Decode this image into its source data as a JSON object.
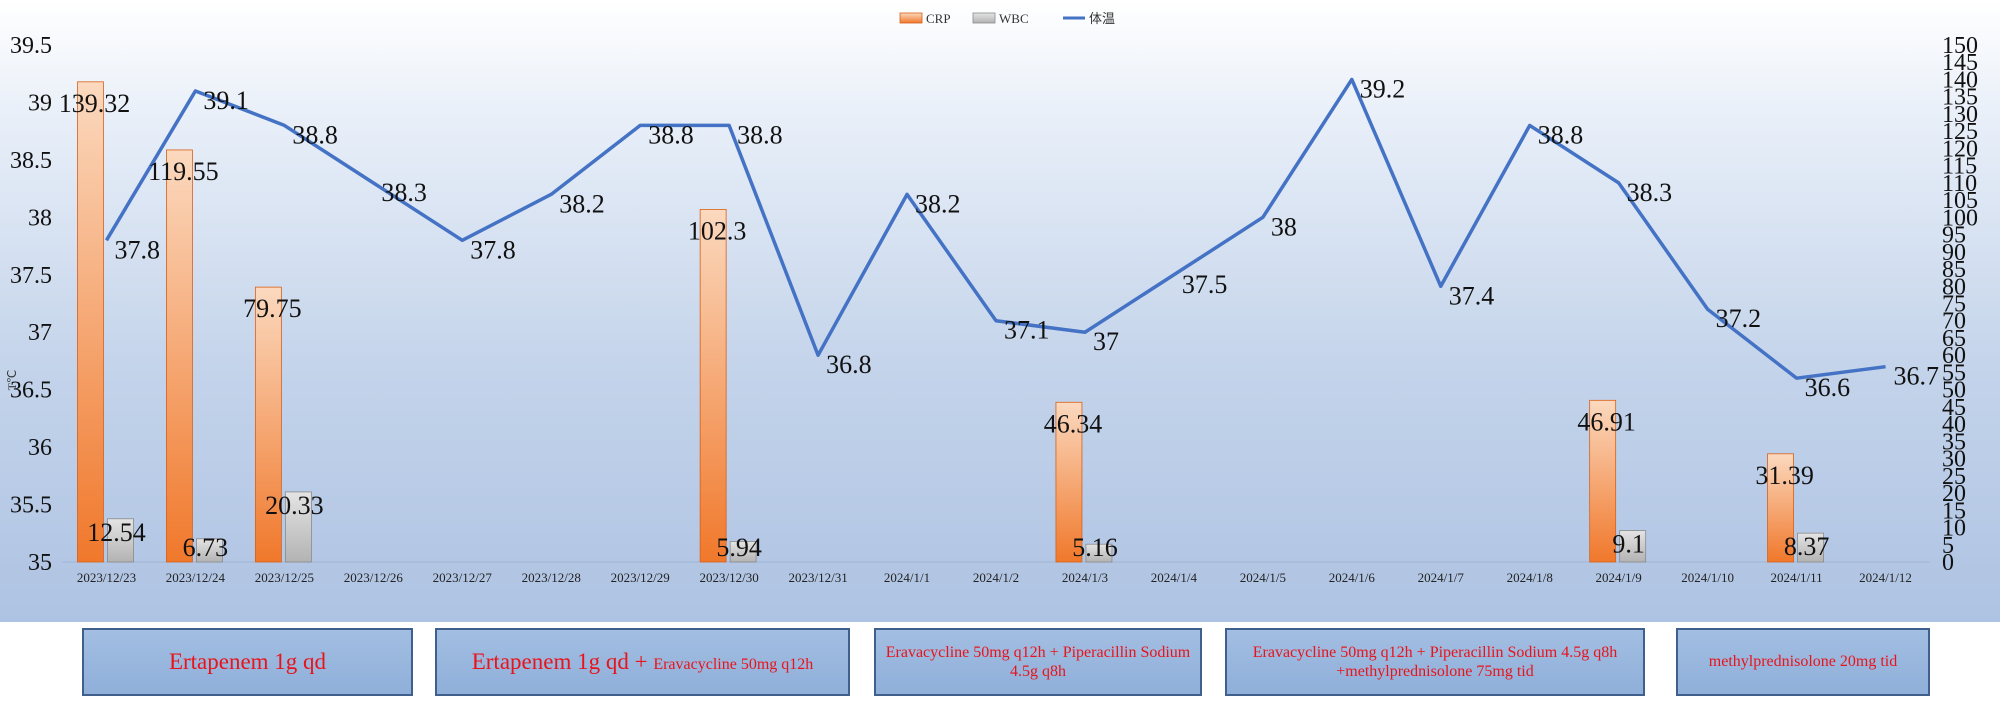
{
  "chart_data": {
    "type": "bar+line",
    "title": "",
    "ylabel": "T℃",
    "y_left": {
      "min": 35,
      "max": 39.5,
      "ticks": [
        "35",
        "35.5",
        "36",
        "36.5",
        "37",
        "37.5",
        "38",
        "38.5",
        "39",
        "39.5"
      ]
    },
    "y_right": {
      "min": 0,
      "max": 150,
      "ticks": [
        "0",
        "5",
        "10",
        "15",
        "20",
        "25",
        "30",
        "35",
        "40",
        "45",
        "50",
        "55",
        "60",
        "65",
        "70",
        "75",
        "80",
        "85",
        "90",
        "95",
        "100",
        "105",
        "110",
        "115",
        "120",
        "125",
        "130",
        "135",
        "140",
        "145",
        "150"
      ]
    },
    "categories": [
      "2023/12/23",
      "2023/12/24",
      "2023/12/25",
      "2023/12/26",
      "2023/12/27",
      "2023/12/28",
      "2023/12/29",
      "2023/12/30",
      "2023/12/31",
      "2024/1/1",
      "2024/1/2",
      "2024/1/3",
      "2024/1/4",
      "2024/1/5",
      "2024/1/6",
      "2024/1/7",
      "2024/1/8",
      "2024/1/9",
      "2024/1/10",
      "2024/1/11",
      "2024/1/12"
    ],
    "legend": [
      "CRP",
      "WBC",
      "体温"
    ],
    "legend_position": "top-center",
    "grid": false,
    "series": [
      {
        "name": "CRP",
        "kind": "bar",
        "axis": "right",
        "color": "#f0782b",
        "values": [
          139.32,
          119.55,
          79.75,
          null,
          null,
          null,
          null,
          102.3,
          null,
          null,
          null,
          46.34,
          null,
          null,
          null,
          null,
          null,
          46.91,
          null,
          31.39,
          null
        ],
        "labels": [
          "139.32",
          "119.55",
          "79.75",
          "",
          "",
          "",
          "",
          "102.3",
          "",
          "",
          "",
          "46.34",
          "",
          "",
          "",
          "",
          "",
          "46.91",
          "",
          "31.39",
          ""
        ]
      },
      {
        "name": "WBC",
        "kind": "bar",
        "axis": "right",
        "color": "#b3b3b3",
        "values": [
          12.54,
          6.73,
          20.33,
          null,
          null,
          null,
          null,
          5.94,
          null,
          null,
          null,
          5.16,
          null,
          null,
          null,
          null,
          null,
          9.1,
          null,
          8.37,
          null
        ],
        "labels": [
          "12.54",
          "6.73",
          "20.33",
          "",
          "",
          "",
          "",
          "5.94",
          "",
          "",
          "",
          "5.16",
          "",
          "",
          "",
          "",
          "",
          "9.1",
          "",
          "8.37",
          ""
        ]
      },
      {
        "name": "体温",
        "kind": "line",
        "axis": "left",
        "color": "#4472c4",
        "values": [
          37.8,
          39.1,
          38.8,
          38.3,
          37.8,
          38.2,
          38.8,
          38.8,
          36.8,
          38.2,
          37.1,
          37,
          37.5,
          38,
          39.2,
          37.4,
          38.8,
          38.3,
          37.2,
          36.6,
          36.7
        ],
        "labels": [
          "37.8",
          "39.1",
          "38.8",
          "38.3",
          "37.8",
          "38.2",
          "38.8",
          "38.8",
          "36.8",
          "38.2",
          "37.1",
          "37",
          "37.5",
          "38",
          "39.2",
          "37.4",
          "38.8",
          "38.3",
          "37.2",
          "36.6",
          "36.7"
        ]
      }
    ]
  },
  "treatments": [
    {
      "main": "Ertapenem  1g qd",
      "small": ""
    },
    {
      "main": "Ertapenem  1g qd + ",
      "small": "Eravacycline  50mg q12h"
    },
    {
      "main": "Eravacycline 50mg q12h + Piperacillin Sodium  4.5g q8h",
      "small": ""
    },
    {
      "main": "Eravacycline  50mg q12h + Piperacillin Sodium 4.5g q8h +methylprednisolone 75mg tid",
      "small": ""
    },
    {
      "main": "methylprednisolone 20mg tid",
      "small": ""
    }
  ]
}
